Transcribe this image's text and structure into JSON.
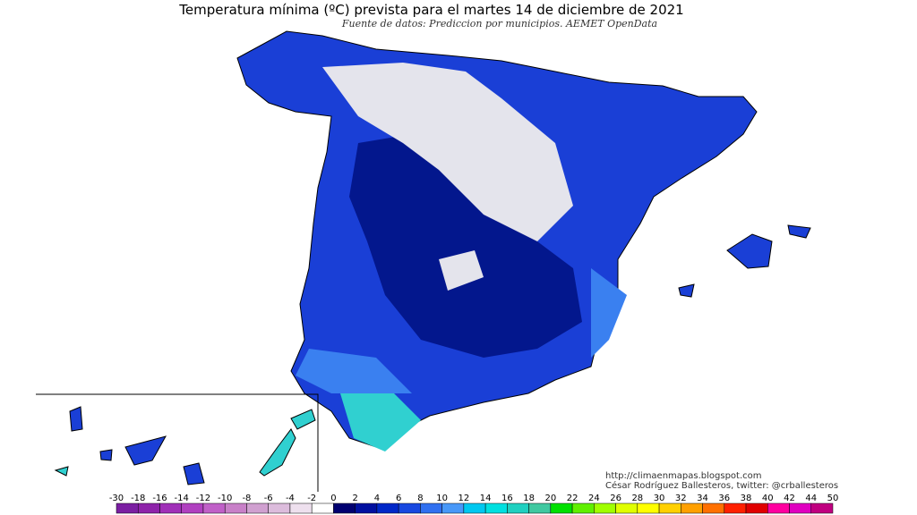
{
  "header": {
    "title": "Temperatura mínima (ºC) prevista para el martes 14 de diciembre de 2021",
    "subtitle": "Fuente de datos: Prediccion por municipios. AEMET OpenData"
  },
  "credits": [
    "http://climaenmapas.blogspot.com",
    "César Rodríguez Ballesteros, twitter: @crballesteros"
  ],
  "legend": {
    "ticks": [
      -30,
      -18,
      -16,
      -14,
      -12,
      -10,
      -8,
      -6,
      -4,
      -2,
      0,
      2,
      4,
      6,
      8,
      10,
      12,
      14,
      16,
      18,
      20,
      22,
      24,
      26,
      28,
      30,
      32,
      34,
      36,
      38,
      40,
      42,
      44,
      50
    ],
    "colors": [
      "#7b1fa2",
      "#8e24aa",
      "#a030b8",
      "#b040c0",
      "#c060c8",
      "#c880c8",
      "#d0a0d0",
      "#dcbcdc",
      "#eee0ee",
      "#ffffff",
      "#000070",
      "#0010a0",
      "#0028c8",
      "#1848e0",
      "#3070f0",
      "#4898f8",
      "#00c8f0",
      "#00e0e0",
      "#20d0c0",
      "#40c8a0",
      "#00e000",
      "#60f000",
      "#a0ff00",
      "#e0ff00",
      "#ffff00",
      "#ffd000",
      "#ffa000",
      "#ff7000",
      "#ff2000",
      "#e00000",
      "#ff00a0",
      "#e000c0",
      "#c00080"
    ]
  }
}
